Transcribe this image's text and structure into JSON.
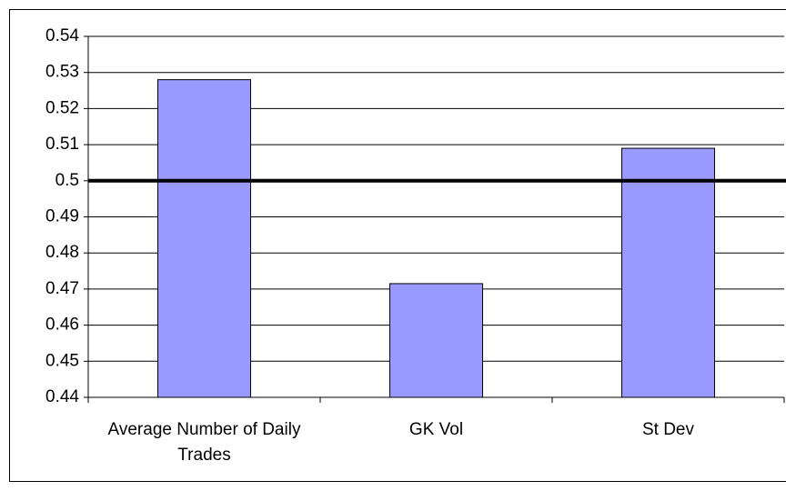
{
  "chart_data": {
    "type": "bar",
    "categories": [
      "Average Number of Daily Trades",
      "GK Vol",
      "St Dev"
    ],
    "values": [
      0.528,
      0.4715,
      0.509
    ],
    "color": "#9999ff",
    "ylim": [
      0.44,
      0.54
    ],
    "yticks": [
      0.44,
      0.45,
      0.46,
      0.47,
      0.48,
      0.49,
      0.5,
      0.51,
      0.52,
      0.53,
      0.54
    ],
    "grid": true,
    "reference_line": 0.5
  }
}
